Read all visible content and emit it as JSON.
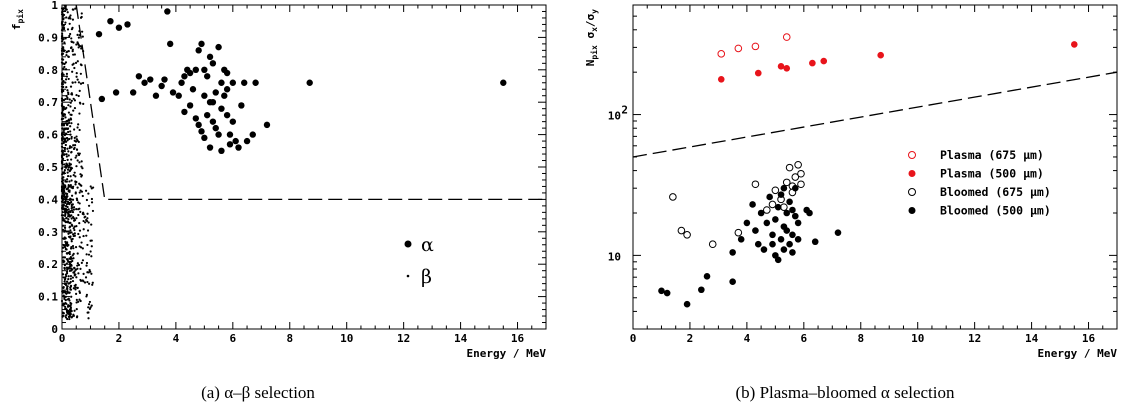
{
  "chart_data": [
    {
      "type": "scatter",
      "caption": "(a) α–β selection",
      "xlabel": "Energy / MeV",
      "ylabel": "f_pix",
      "ylabel_main": "f",
      "ylabel_sub": "pix",
      "xlim": [
        0,
        17
      ],
      "ylim": [
        0,
        1
      ],
      "x_ticks": [
        "0",
        "2",
        "4",
        "6",
        "8",
        "10",
        "12",
        "14",
        "16"
      ],
      "y_ticks": [
        "0",
        "0.1",
        "0.2",
        "0.3",
        "0.4",
        "0.5",
        "0.6",
        "0.7",
        "0.8",
        "0.9",
        "1"
      ],
      "legend": [
        {
          "label": "α",
          "marker": "large-dot"
        },
        {
          "label": "β",
          "marker": "small-dot"
        }
      ],
      "cut_line": {
        "style": "dashed",
        "points": [
          [
            0.5,
            1.0
          ],
          [
            1.5,
            0.4
          ],
          [
            17,
            0.4
          ]
        ]
      },
      "series": [
        {
          "name": "α",
          "marker": "large-dot",
          "points": [
            [
              1.3,
              0.91
            ],
            [
              1.7,
              0.95
            ],
            [
              2.0,
              0.93
            ],
            [
              2.3,
              0.94
            ],
            [
              3.7,
              0.98
            ],
            [
              1.4,
              0.71
            ],
            [
              1.9,
              0.73
            ],
            [
              2.5,
              0.73
            ],
            [
              2.7,
              0.78
            ],
            [
              2.9,
              0.76
            ],
            [
              3.1,
              0.77
            ],
            [
              3.3,
              0.72
            ],
            [
              3.5,
              0.75
            ],
            [
              3.6,
              0.77
            ],
            [
              3.8,
              0.88
            ],
            [
              3.9,
              0.73
            ],
            [
              4.1,
              0.72
            ],
            [
              4.2,
              0.76
            ],
            [
              4.3,
              0.78
            ],
            [
              4.4,
              0.8
            ],
            [
              4.5,
              0.79
            ],
            [
              4.6,
              0.74
            ],
            [
              4.7,
              0.8
            ],
            [
              4.8,
              0.86
            ],
            [
              4.9,
              0.88
            ],
            [
              5.0,
              0.8
            ],
            [
              5.1,
              0.78
            ],
            [
              5.2,
              0.84
            ],
            [
              5.3,
              0.82
            ],
            [
              5.5,
              0.87
            ],
            [
              5.7,
              0.8
            ],
            [
              5.8,
              0.79
            ],
            [
              6.0,
              0.76
            ],
            [
              6.4,
              0.76
            ],
            [
              6.8,
              0.76
            ],
            [
              4.3,
              0.67
            ],
            [
              4.5,
              0.69
            ],
            [
              4.7,
              0.65
            ],
            [
              4.8,
              0.63
            ],
            [
              4.9,
              0.61
            ],
            [
              5.0,
              0.59
            ],
            [
              5.1,
              0.66
            ],
            [
              5.2,
              0.7
            ],
            [
              5.3,
              0.64
            ],
            [
              5.4,
              0.62
            ],
            [
              5.5,
              0.6
            ],
            [
              5.6,
              0.68
            ],
            [
              5.7,
              0.72
            ],
            [
              5.8,
              0.66
            ],
            [
              5.9,
              0.6
            ],
            [
              6.0,
              0.64
            ],
            [
              6.1,
              0.58
            ],
            [
              6.2,
              0.56
            ],
            [
              5.2,
              0.56
            ],
            [
              5.6,
              0.55
            ],
            [
              5.9,
              0.57
            ],
            [
              6.5,
              0.58
            ],
            [
              7.2,
              0.63
            ],
            [
              5.4,
              0.73
            ],
            [
              5.8,
              0.74
            ],
            [
              6.3,
              0.69
            ],
            [
              6.7,
              0.6
            ],
            [
              5.0,
              0.72
            ],
            [
              5.6,
              0.76
            ],
            [
              5.3,
              0.7
            ],
            [
              8.7,
              0.76
            ],
            [
              15.5,
              0.76
            ]
          ]
        },
        {
          "name": "β",
          "marker": "small-dot",
          "cloud": {
            "x_range": [
              0.0,
              1.1
            ],
            "y_range": [
              0.03,
              1.0
            ],
            "count": 900
          }
        }
      ]
    },
    {
      "type": "scatter",
      "caption": "(b) Plasma–bloomed α selection",
      "xlabel": "Energy / MeV",
      "ylabel": "N_pix σ_x/σ_y",
      "ylabel_parts": [
        "N",
        "pix",
        " σ",
        "x",
        "/σ",
        "y"
      ],
      "xlim": [
        0,
        17
      ],
      "ylim": [
        3,
        600
      ],
      "yscale": "log",
      "x_ticks": [
        "0",
        "2",
        "4",
        "6",
        "8",
        "10",
        "12",
        "14",
        "16"
      ],
      "y_ticks": [
        {
          "value": 10,
          "label": "10"
        },
        {
          "value": 100,
          "label": "10",
          "exp": "2"
        }
      ],
      "legend_position": "right-center",
      "cut_line": {
        "style": "dashed",
        "points": [
          [
            0,
            50
          ],
          [
            17,
            200
          ]
        ]
      },
      "series": [
        {
          "name": "Plasma (675 μm)",
          "color": "#e8141b",
          "marker": "open-circle",
          "points": [
            [
              3.1,
              270
            ],
            [
              3.7,
              295
            ],
            [
              4.3,
              305
            ],
            [
              5.4,
              355
            ]
          ]
        },
        {
          "name": "Plasma (500 μm)",
          "color": "#e8141b",
          "marker": "filled-circle",
          "points": [
            [
              3.1,
              178
            ],
            [
              4.4,
              197
            ],
            [
              5.2,
              220
            ],
            [
              5.4,
              213
            ],
            [
              6.3,
              232
            ],
            [
              6.7,
              240
            ],
            [
              8.7,
              264
            ],
            [
              15.5,
              315
            ]
          ]
        },
        {
          "name": "Bloomed (675 μm)",
          "color": "#000000",
          "marker": "open-circle",
          "points": [
            [
              1.4,
              26
            ],
            [
              1.7,
              15
            ],
            [
              1.9,
              14
            ],
            [
              2.8,
              12
            ],
            [
              3.7,
              14.5
            ],
            [
              4.3,
              32
            ],
            [
              4.7,
              21
            ],
            [
              4.9,
              23
            ],
            [
              5.0,
              29
            ],
            [
              5.2,
              25
            ],
            [
              5.4,
              33
            ],
            [
              5.5,
              42
            ],
            [
              5.6,
              31
            ],
            [
              5.7,
              36
            ],
            [
              5.8,
              44
            ],
            [
              5.9,
              38
            ],
            [
              5.6,
              28
            ],
            [
              5.9,
              32
            ],
            [
              5.3,
              22
            ]
          ]
        },
        {
          "name": "Bloomed (500 μm)",
          "color": "#000000",
          "marker": "filled-circle",
          "points": [
            [
              1.0,
              5.6
            ],
            [
              1.2,
              5.4
            ],
            [
              1.9,
              4.5
            ],
            [
              2.4,
              5.7
            ],
            [
              2.6,
              7.1
            ],
            [
              3.5,
              6.5
            ],
            [
              3.5,
              10.5
            ],
            [
              3.8,
              13
            ],
            [
              4.0,
              17
            ],
            [
              4.2,
              23
            ],
            [
              4.3,
              15
            ],
            [
              4.4,
              12
            ],
            [
              4.5,
              20
            ],
            [
              4.6,
              11
            ],
            [
              4.7,
              17
            ],
            [
              4.8,
              26
            ],
            [
              4.9,
              14
            ],
            [
              5.0,
              10
            ],
            [
              5.0,
              18
            ],
            [
              5.1,
              22
            ],
            [
              5.1,
              9.3
            ],
            [
              5.2,
              13
            ],
            [
              5.2,
              27
            ],
            [
              5.3,
              16
            ],
            [
              5.3,
              11
            ],
            [
              5.4,
              20
            ],
            [
              5.4,
              15
            ],
            [
              5.5,
              24
            ],
            [
              5.5,
              12
            ],
            [
              5.6,
              21
            ],
            [
              5.6,
              14
            ],
            [
              5.7,
              19
            ],
            [
              5.7,
              30
            ],
            [
              5.8,
              17
            ],
            [
              5.8,
              13
            ],
            [
              5.6,
              10.5
            ],
            [
              6.1,
              21
            ],
            [
              6.2,
              20
            ],
            [
              6.4,
              12.5
            ],
            [
              7.2,
              14.5
            ],
            [
              4.9,
              12
            ],
            [
              5.3,
              30
            ]
          ]
        }
      ]
    }
  ]
}
